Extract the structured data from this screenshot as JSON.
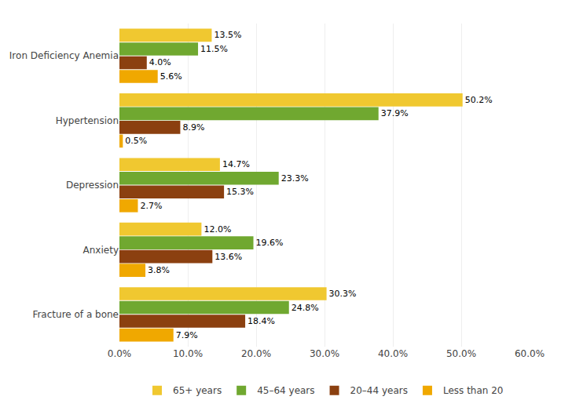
{
  "chart_data": {
    "type": "bar",
    "orientation": "horizontal",
    "categories": [
      "Iron Deficiency Anemia",
      "Hypertension",
      "Depression",
      "Anxiety",
      "Fracture of a bone"
    ],
    "series": [
      {
        "name": "65+ years",
        "color": "#F0C830",
        "values": [
          13.5,
          50.2,
          14.7,
          12.0,
          30.3
        ],
        "value_labels": [
          "13.5%",
          "50.2%",
          "14.7%",
          "12.0%",
          "30.3%"
        ]
      },
      {
        "name": "45–64 years",
        "color": "#70A830",
        "values": [
          11.5,
          37.9,
          23.3,
          19.6,
          24.8
        ],
        "value_labels": [
          "11.5%",
          "37.9%",
          "23.3%",
          "19.6%",
          "24.8%"
        ]
      },
      {
        "name": "20–44 years",
        "color": "#8B4010",
        "values": [
          4.0,
          8.9,
          15.3,
          13.6,
          18.4
        ],
        "value_labels": [
          "4.0%",
          "8.9%",
          "15.3%",
          "13.6%",
          "18.4%"
        ]
      },
      {
        "name": "Less than 20",
        "color": "#F0A800",
        "values": [
          5.6,
          0.5,
          2.7,
          3.8,
          7.9
        ],
        "value_labels": [
          "5.6%",
          "0.5%",
          "2.7%",
          "3.8%",
          "7.9%"
        ]
      }
    ],
    "xlim": [
      0,
      60
    ],
    "xticks": [
      {
        "value": 0,
        "label": "0.0%"
      },
      {
        "value": 10,
        "label": "10.0%"
      },
      {
        "value": 20,
        "label": "20.0%"
      },
      {
        "value": 30,
        "label": "30.0%"
      },
      {
        "value": 40,
        "label": "40.0%"
      },
      {
        "value": 50,
        "label": "50.0%"
      },
      {
        "value": 60,
        "label": "60.0%"
      }
    ],
    "grid": true,
    "legend": "bottom",
    "data_labels": true
  }
}
